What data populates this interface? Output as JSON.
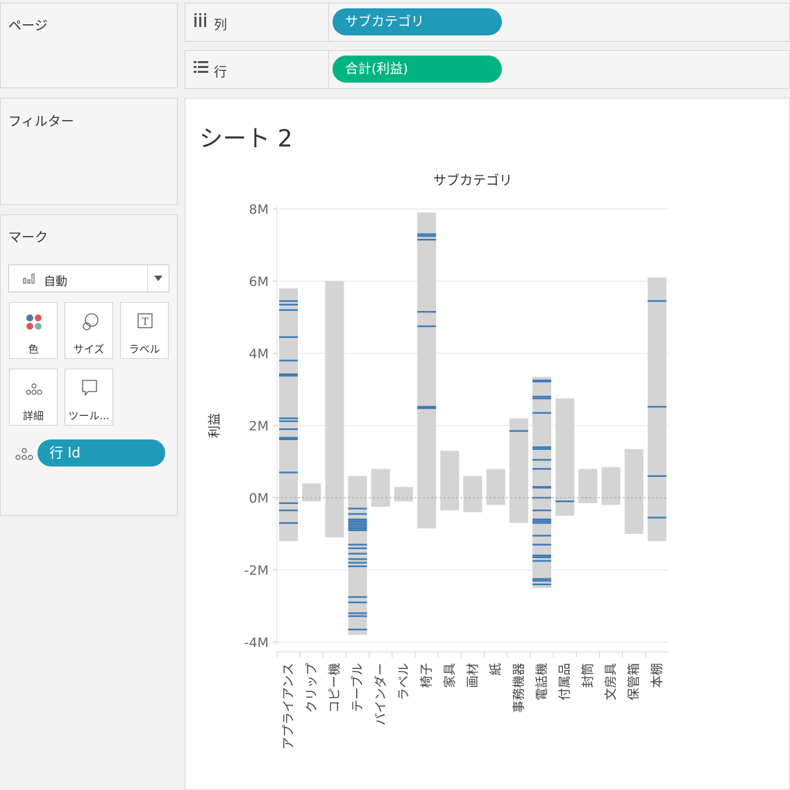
{
  "panels": {
    "pages": "ページ",
    "filters": "フィルター",
    "marks": "マーク"
  },
  "shelves": {
    "columns": {
      "label": "列",
      "pill": "サブカテゴリ"
    },
    "rows": {
      "label": "行",
      "pill": "合計(利益)"
    }
  },
  "marks_card": {
    "mark_type": "自動",
    "buttons": {
      "color": "色",
      "size": "サイズ",
      "label": "ラベル",
      "detail": "詳細",
      "tooltip": "ツール..."
    },
    "detail_field": "行 Id"
  },
  "sheet_title": "シート 2",
  "colors": {
    "range_bar": "#d4d4d4",
    "tick": "#3d7ab8",
    "columns_pill": "#1f9ab8",
    "rows_pill": "#00b480"
  },
  "chart_data": {
    "type": "bar",
    "title": "サブカテゴリ",
    "xlabel": "",
    "ylabel": "利益",
    "ylim": [
      -4,
      8
    ],
    "yticks": [
      "8M",
      "6M",
      "4M",
      "2M",
      "0M",
      "-2M",
      "-4M"
    ],
    "categories": [
      "アプライアンス",
      "クリップ",
      "コピー機",
      "テーブル",
      "バインダー",
      "ラベル",
      "椅子",
      "家具",
      "画材",
      "紙",
      "事務機器",
      "電話機",
      "付属品",
      "封筒",
      "文房具",
      "保管箱",
      "本棚"
    ],
    "ranges": [
      [
        -1.2,
        5.8
      ],
      [
        -0.1,
        0.4
      ],
      [
        -1.1,
        6.0
      ],
      [
        -3.8,
        0.6
      ],
      [
        -0.25,
        0.8
      ],
      [
        -0.1,
        0.3
      ],
      [
        -0.85,
        7.9
      ],
      [
        -0.35,
        1.3
      ],
      [
        -0.4,
        0.6
      ],
      [
        -0.2,
        0.8
      ],
      [
        -0.7,
        2.2
      ],
      [
        -2.5,
        3.35
      ],
      [
        -0.5,
        2.75
      ],
      [
        -0.15,
        0.8
      ],
      [
        -0.2,
        0.85
      ],
      [
        -1.0,
        1.35
      ],
      [
        -1.2,
        6.1
      ]
    ],
    "ticks": [
      [
        5.45,
        5.35,
        5.2,
        4.45,
        3.8,
        3.42,
        3.38,
        2.2,
        2.12,
        1.9,
        1.66,
        1.62,
        0.7,
        -0.15,
        -0.35,
        -0.7
      ],
      [],
      [],
      [
        -0.3,
        -0.45,
        -0.6,
        -0.65,
        -0.7,
        -0.75,
        -0.8,
        -0.85,
        -0.9,
        -1.3,
        -1.4,
        -1.55,
        -1.7,
        -1.8,
        -1.9,
        -2.75,
        -2.9,
        -3.2,
        -3.28,
        -3.65
      ],
      [],
      [],
      [
        7.3,
        7.25,
        7.15,
        5.15,
        4.75,
        2.52,
        2.48
      ],
      [],
      [],
      [],
      [
        1.85
      ],
      [
        3.25,
        3.22,
        2.8,
        2.75,
        2.35,
        1.4,
        1.35,
        1.05,
        0.8,
        0.3,
        0.28,
        0.0,
        -0.35,
        -0.6,
        -0.65,
        -0.7,
        -1.05,
        -1.3,
        -1.6,
        -1.65,
        -1.75,
        -2.25,
        -2.3,
        -2.4
      ],
      [
        -0.1
      ],
      [],
      [],
      [],
      [
        5.45,
        2.52,
        0.6,
        -0.55
      ]
    ]
  }
}
